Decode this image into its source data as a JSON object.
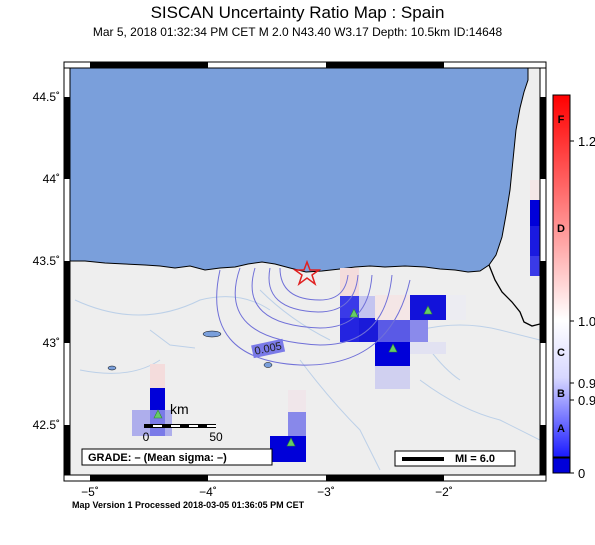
{
  "title": "SISCAN Uncertainty Ratio Map : Spain",
  "subtitle": "Mar  5, 2018 01:32:34 PM CET   M 2.0   N43.40 W3.17   Depth: 10.5km   ID:14648",
  "axes": {
    "lat_ticks": [
      {
        "label": "44.5˚",
        "value": 44.5
      },
      {
        "label": "44˚",
        "value": 44.0
      },
      {
        "label": "43.5˚",
        "value": 43.5
      },
      {
        "label": "43˚",
        "value": 43.0
      },
      {
        "label": "42.5˚",
        "value": 42.5
      }
    ],
    "lon_ticks": [
      {
        "label": "−5˚",
        "value": -5
      },
      {
        "label": "−4˚",
        "value": -4
      },
      {
        "label": "−3˚",
        "value": -3
      },
      {
        "label": "−2˚",
        "value": -2
      }
    ]
  },
  "colorbar": {
    "grade_labels": [
      "F",
      "D",
      "C",
      "B",
      "A"
    ],
    "value_labels": [
      "1.2",
      "1.0",
      "0.9",
      "0.9",
      "0"
    ]
  },
  "contour_label": "0.005",
  "scale_bar": {
    "unit": "km",
    "start": "0",
    "end": "50"
  },
  "grade_box": "GRADE: – (Mean sigma: –)",
  "mi_legend": "MI = 6.0",
  "footer": "Map Version 1 Processed 2018-03-05 01:36:05 PM CET",
  "epicenter": {
    "lat": 43.4,
    "lon": -3.17
  },
  "colors": {
    "sea": "#7a9fdb",
    "land": "#eeeeee",
    "high": "#0000d9",
    "mid": "#6f6fe8",
    "low": "#c4c4f0",
    "pinkish": "#f4dcdc",
    "station": "#66cc66",
    "epicenter": "#e02020"
  }
}
